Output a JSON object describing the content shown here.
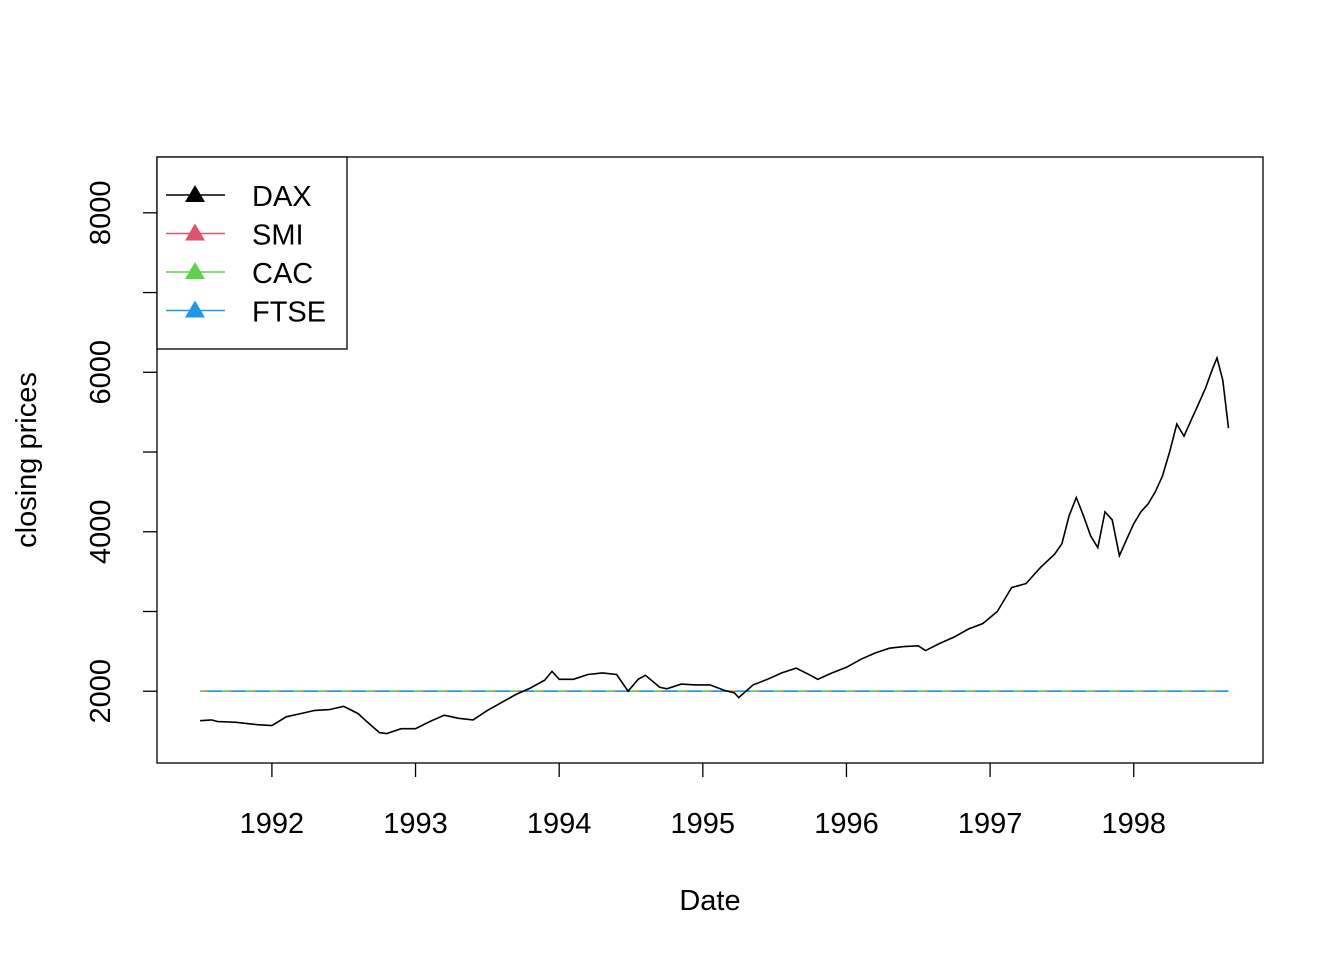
{
  "chart_data": {
    "type": "line",
    "title": "",
    "xlabel": "Date",
    "ylabel": "closing prices",
    "xlim": [
      1991.2,
      1998.9
    ],
    "ylim": [
      1100,
      8700
    ],
    "x_ticks": [
      "1992",
      "1993",
      "1994",
      "1995",
      "1996",
      "1997",
      "1998"
    ],
    "y_ticks": [
      "2000",
      "4000",
      "6000",
      "8000"
    ],
    "legend_position": "top-left",
    "series": [
      {
        "name": "DAX",
        "color": "#000000",
        "x": [
          1991.5,
          1991.58,
          1991.62,
          1991.75,
          1991.9,
          1992.0,
          1992.1,
          1992.2,
          1992.3,
          1992.4,
          1992.5,
          1992.6,
          1992.66,
          1992.75,
          1992.8,
          1992.9,
          1993.0,
          1993.1,
          1993.2,
          1993.3,
          1993.4,
          1993.5,
          1993.6,
          1993.7,
          1993.8,
          1993.9,
          1993.95,
          1994.0,
          1994.1,
          1994.2,
          1994.3,
          1994.4,
          1994.48,
          1994.55,
          1994.6,
          1994.7,
          1994.75,
          1994.85,
          1994.95,
          1995.05,
          1995.15,
          1995.22,
          1995.25,
          1995.35,
          1995.45,
          1995.55,
          1995.65,
          1995.75,
          1995.8,
          1995.9,
          1996.0,
          1996.1,
          1996.2,
          1996.3,
          1996.4,
          1996.5,
          1996.55,
          1996.65,
          1996.75,
          1996.85,
          1996.95,
          1997.05,
          1997.1,
          1997.15,
          1997.25,
          1997.35,
          1997.45,
          1997.5,
          1997.55,
          1997.6,
          1997.65,
          1997.7,
          1997.75,
          1997.8,
          1997.85,
          1997.9,
          1997.95,
          1998.0,
          1998.05,
          1998.1,
          1998.15,
          1998.2,
          1998.25,
          1998.3,
          1998.35,
          1998.4,
          1998.45,
          1998.5,
          1998.55,
          1998.58,
          1998.62,
          1998.66
        ],
        "values": [
          1630,
          1640,
          1620,
          1610,
          1580,
          1570,
          1680,
          1720,
          1760,
          1770,
          1810,
          1720,
          1620,
          1480,
          1470,
          1530,
          1530,
          1620,
          1700,
          1660,
          1640,
          1760,
          1860,
          1960,
          2040,
          2140,
          2250,
          2150,
          2150,
          2210,
          2230,
          2210,
          2000,
          2150,
          2200,
          2050,
          2030,
          2090,
          2080,
          2080,
          2010,
          1980,
          1920,
          2080,
          2150,
          2230,
          2290,
          2200,
          2150,
          2230,
          2300,
          2400,
          2480,
          2540,
          2560,
          2570,
          2510,
          2600,
          2680,
          2780,
          2850,
          3000,
          3150,
          3300,
          3350,
          3550,
          3720,
          3850,
          4200,
          4430,
          4200,
          3950,
          3800,
          4250,
          4150,
          3700,
          3900,
          4100,
          4250,
          4350,
          4500,
          4700,
          5000,
          5350,
          5200,
          5400,
          5600,
          5800,
          6050,
          6180,
          5900,
          5300
        ]
      },
      {
        "name": "SMI",
        "color": "#df536b",
        "x": [
          1991.5,
          1998.66
        ],
        "values": [
          2000,
          2000
        ]
      },
      {
        "name": "CAC",
        "color": "#61d04f",
        "x": [
          1991.5,
          1998.66
        ],
        "values": [
          2000,
          2000
        ]
      },
      {
        "name": "FTSE",
        "color": "#2297e6",
        "x": [
          1991.5,
          1998.66
        ],
        "values": [
          2000,
          2000
        ]
      }
    ]
  }
}
